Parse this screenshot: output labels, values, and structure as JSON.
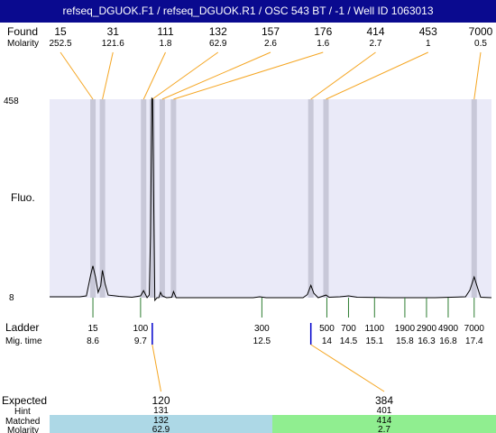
{
  "header": {
    "title": "refseq_DGUOK.F1 / refseq_DGUOK.R1 / OSC 543 BT / -1 / Well ID 1063013"
  },
  "labels": {
    "found": "Found",
    "molarity": "Molarity",
    "fluo": "Fluo.",
    "ladder": "Ladder",
    "mig_time": "Mig. time",
    "expected": "Expected",
    "hint": "Hint",
    "matched": "Matched",
    "molarity_bottom": "Molarity",
    "y_top": "458",
    "y_bottom": "8"
  },
  "colors": {
    "title_bg": "#0a0a8f",
    "plot_bg": "#eaeaf8",
    "band": "#c8c8d8",
    "found_line": "#f5a623",
    "ladder_tick": "#2e7d32",
    "expected_marker": "#0000cc",
    "matched_blue": "#add8e6",
    "matched_green": "#90ee90"
  },
  "chart_data": {
    "type": "line",
    "title": "",
    "xlabel": "Mig. time",
    "ylabel": "Fluo.",
    "ylim": [
      8,
      458
    ],
    "xlim": [
      7.6,
      17.8
    ],
    "grid": false,
    "found_peaks": [
      {
        "size": "15",
        "molarity": "252.5",
        "time": 8.6
      },
      {
        "size": "31",
        "molarity": "121.6",
        "time": 8.82
      },
      {
        "size": "111",
        "molarity": "1.8",
        "time": 9.77
      },
      {
        "size": "132",
        "molarity": "62.9",
        "time": 9.97
      },
      {
        "size": "157",
        "molarity": "2.6",
        "time": 10.2
      },
      {
        "size": "176",
        "molarity": "1.6",
        "time": 10.46
      },
      {
        "size": "414",
        "molarity": "2.7",
        "time": 13.63
      },
      {
        "size": "453",
        "molarity": "1",
        "time": 13.98
      },
      {
        "size": "7000",
        "molarity": "0.5",
        "time": 17.4
      }
    ],
    "ladder": [
      {
        "size": "15",
        "time": "8.6",
        "t": 8.6
      },
      {
        "size": "100",
        "time": "9.7",
        "t": 9.7
      },
      {
        "size": "300",
        "time": "12.5",
        "t": 12.5
      },
      {
        "size": "500",
        "time": "14",
        "t": 14
      },
      {
        "size": "700",
        "time": "14.5",
        "t": 14.5
      },
      {
        "size": "1100",
        "time": "15.1",
        "t": 15.1
      },
      {
        "size": "1900",
        "time": "15.8",
        "t": 15.8
      },
      {
        "size": "2900",
        "time": "16.3",
        "t": 16.3
      },
      {
        "size": "4900",
        "time": "16.8",
        "t": 16.8
      },
      {
        "size": "7000",
        "time": "17.4",
        "t": 17.4
      }
    ],
    "expected": [
      {
        "size": "120",
        "hint": "131",
        "matched": "132",
        "molarity": "62.9",
        "time": 9.97
      },
      {
        "size": "384",
        "hint": "401",
        "matched": "414",
        "molarity": "2.7",
        "time": 13.63
      }
    ],
    "trace": [
      [
        7.6,
        10
      ],
      [
        8.3,
        10
      ],
      [
        8.45,
        12
      ],
      [
        8.55,
        60
      ],
      [
        8.6,
        80
      ],
      [
        8.66,
        55
      ],
      [
        8.72,
        20
      ],
      [
        8.78,
        35
      ],
      [
        8.82,
        70
      ],
      [
        8.88,
        40
      ],
      [
        8.95,
        14
      ],
      [
        9.2,
        11
      ],
      [
        9.5,
        9
      ],
      [
        9.7,
        12
      ],
      [
        9.77,
        24
      ],
      [
        9.85,
        8
      ],
      [
        9.9,
        14
      ],
      [
        9.93,
        150
      ],
      [
        9.96,
        460
      ],
      [
        9.98,
        458
      ],
      [
        10.0,
        250
      ],
      [
        10.03,
        2
      ],
      [
        10.08,
        8
      ],
      [
        10.12,
        8
      ],
      [
        10.16,
        20
      ],
      [
        10.2,
        12
      ],
      [
        10.3,
        8
      ],
      [
        10.42,
        9
      ],
      [
        10.46,
        22
      ],
      [
        10.52,
        8
      ],
      [
        11.5,
        8
      ],
      [
        12.3,
        8
      ],
      [
        12.45,
        10
      ],
      [
        12.6,
        8
      ],
      [
        13.45,
        8
      ],
      [
        13.55,
        15
      ],
      [
        13.63,
        36
      ],
      [
        13.7,
        18
      ],
      [
        13.8,
        8
      ],
      [
        13.98,
        14
      ],
      [
        14.05,
        9
      ],
      [
        14.3,
        10
      ],
      [
        14.5,
        12
      ],
      [
        14.7,
        9
      ],
      [
        15.5,
        8
      ],
      [
        16.5,
        8
      ],
      [
        17.2,
        10
      ],
      [
        17.3,
        25
      ],
      [
        17.4,
        55
      ],
      [
        17.48,
        30
      ],
      [
        17.55,
        9
      ],
      [
        17.8,
        8
      ]
    ]
  }
}
